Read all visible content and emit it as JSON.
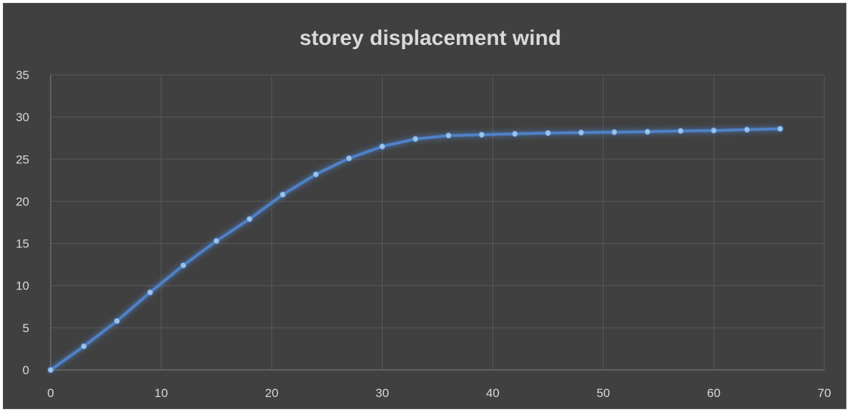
{
  "chart_data": {
    "type": "line",
    "title": "storey displacement wind",
    "xlabel": "",
    "ylabel": "",
    "xlim": [
      0,
      70
    ],
    "ylim": [
      0,
      35
    ],
    "x_ticks": [
      "0",
      "10",
      "20",
      "30",
      "40",
      "50",
      "60",
      "70"
    ],
    "y_ticks": [
      "0",
      "5",
      "10",
      "15",
      "20",
      "25",
      "30",
      "35"
    ],
    "grid": true,
    "legend": "none",
    "series": [
      {
        "color": "#4f81c7",
        "x": [
          0,
          3,
          6,
          9,
          12,
          15,
          18,
          21,
          24,
          27,
          30,
          33,
          36,
          39,
          42,
          45,
          48,
          51,
          54,
          57,
          60,
          63,
          66
        ],
        "y": [
          0,
          2.8,
          5.8,
          9.2,
          12.4,
          15.3,
          17.9,
          20.8,
          23.2,
          25.1,
          26.5,
          27.4,
          27.8,
          27.9,
          28.0,
          28.1,
          28.15,
          28.2,
          28.25,
          28.35,
          28.4,
          28.5,
          28.6
        ]
      }
    ]
  },
  "colors": {
    "background": "#404040",
    "grid": "#595959",
    "text": "#d9d9d9",
    "line": "#4f81c7",
    "marker": "#9dc3e6"
  }
}
